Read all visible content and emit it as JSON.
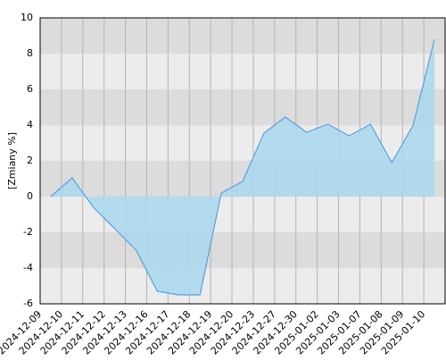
{
  "chart_data": {
    "type": "area",
    "y_label": "[Zmiany %]",
    "categories": [
      "2024-12-09",
      "2024-12-10",
      "2024-12-11",
      "2024-12-12",
      "2024-12-13",
      "2024-12-16",
      "2024-12-17",
      "2024-12-18",
      "2024-12-19",
      "2024-12-20",
      "2024-12-23",
      "2024-12-27",
      "2024-12-30",
      "2025-01-02",
      "2025-01-03",
      "2025-01-07",
      "2025-01-08",
      "2025-01-09",
      "2025-01-10"
    ],
    "values": [
      0,
      1.05,
      -0.6,
      -1.8,
      -3,
      -5.3,
      -5.5,
      -5.5,
      0.2,
      0.85,
      3.55,
      4.45,
      3.6,
      4.05,
      3.4,
      4.05,
      1.9,
      4.0,
      8.8
    ],
    "color": "#5a9fe0",
    "fill": "#a9d8ee",
    "ylim": [
      -6,
      10
    ],
    "yticks": [
      -6,
      -4,
      -2,
      0,
      2,
      4,
      6,
      8,
      10
    ],
    "grid": true
  }
}
